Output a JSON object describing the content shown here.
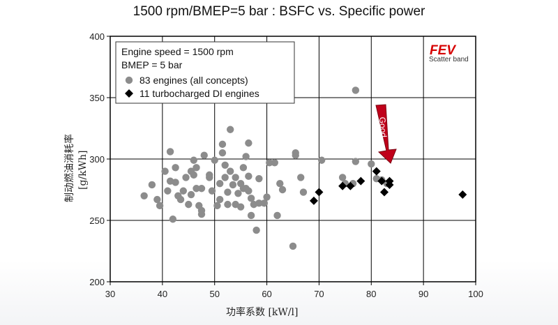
{
  "page_title": "1500 rpm/BMEP=5 bar : BSFC vs. Specific power",
  "chart_data": {
    "type": "scatter",
    "xlabel": "功率系数 [kW/l]",
    "ylabel_cn": "制动燃油消耗率",
    "ylabel_unit": "[g/kWh]",
    "xlim": [
      30,
      100
    ],
    "ylim": [
      200,
      400
    ],
    "xticks": [
      30,
      40,
      50,
      60,
      70,
      80,
      90,
      100
    ],
    "yticks": [
      200,
      250,
      300,
      350,
      400
    ],
    "grid": true,
    "legend": {
      "placement": "top-left",
      "lines": [
        "Engine speed = 1500 rpm",
        "BMEP = 5 bar"
      ],
      "entries": [
        "83 engines (all concepts)",
        "11 turbocharged DI engines"
      ]
    },
    "brand": "FEV",
    "brand_sub": "Scatter band",
    "annotation": "Good",
    "colors": {
      "all_concepts": "#8c8c8c",
      "turbo_di": "#000000",
      "arrow": "#c0001a"
    },
    "series": [
      {
        "name": "83 engines (all concepts)",
        "marker": "circle",
        "points": [
          [
            36.5,
            270
          ],
          [
            38,
            279
          ],
          [
            39,
            267
          ],
          [
            39.5,
            262
          ],
          [
            40.5,
            290
          ],
          [
            41,
            274
          ],
          [
            41.5,
            282
          ],
          [
            41.5,
            306
          ],
          [
            42,
            251
          ],
          [
            42.5,
            293
          ],
          [
            42.5,
            281
          ],
          [
            43,
            270
          ],
          [
            43.5,
            267
          ],
          [
            44,
            274
          ],
          [
            44.5,
            285
          ],
          [
            45,
            263
          ],
          [
            45.5,
            271
          ],
          [
            45.5,
            290
          ],
          [
            46,
            287
          ],
          [
            46,
            299
          ],
          [
            46.5,
            293
          ],
          [
            47,
            262
          ],
          [
            47.5,
            255
          ],
          [
            47.5,
            258
          ],
          [
            47.5,
            276
          ],
          [
            48,
            303
          ],
          [
            49,
            285
          ],
          [
            49.5,
            274
          ],
          [
            50,
            299
          ],
          [
            50.5,
            262
          ],
          [
            51,
            280
          ],
          [
            51,
            267
          ],
          [
            51.5,
            312
          ],
          [
            51.5,
            305
          ],
          [
            52,
            295
          ],
          [
            52,
            285
          ],
          [
            52.5,
            273
          ],
          [
            52.5,
            263
          ],
          [
            53,
            324
          ],
          [
            53,
            290
          ],
          [
            53.5,
            279
          ],
          [
            54,
            285
          ],
          [
            54,
            263
          ],
          [
            54.5,
            272
          ],
          [
            55,
            280
          ],
          [
            55,
            261
          ],
          [
            55.5,
            293
          ],
          [
            55.5,
            276
          ],
          [
            56,
            302
          ],
          [
            56,
            276
          ],
          [
            56.5,
            313
          ],
          [
            56.5,
            286
          ],
          [
            56.5,
            274
          ],
          [
            57,
            268
          ],
          [
            57,
            254
          ],
          [
            57.5,
            263
          ],
          [
            58,
            242
          ],
          [
            58.5,
            264
          ],
          [
            59.5,
            264
          ],
          [
            60,
            269
          ],
          [
            60.5,
            297
          ],
          [
            61.5,
            297
          ],
          [
            62,
            254
          ],
          [
            65,
            229
          ],
          [
            65.5,
            303
          ],
          [
            65.5,
            305
          ],
          [
            66.5,
            285
          ],
          [
            67,
            273
          ],
          [
            70.5,
            299
          ],
          [
            74.5,
            285
          ],
          [
            75,
            280
          ],
          [
            76.5,
            280
          ],
          [
            77,
            298
          ],
          [
            77,
            356
          ],
          [
            80,
            296
          ],
          [
            81,
            284
          ],
          [
            82,
            283
          ],
          [
            83,
            280
          ],
          [
            62.5,
            280
          ],
          [
            63,
            275
          ],
          [
            58.5,
            284
          ],
          [
            49,
            287
          ],
          [
            46.5,
            276
          ]
        ]
      },
      {
        "name": "11 turbocharged DI engines",
        "marker": "diamond",
        "points": [
          [
            69,
            266
          ],
          [
            70,
            273
          ],
          [
            74.5,
            278
          ],
          [
            76,
            278
          ],
          [
            78,
            282
          ],
          [
            81,
            290
          ],
          [
            82,
            282
          ],
          [
            82.5,
            273
          ],
          [
            83.5,
            279
          ],
          [
            83.5,
            282
          ],
          [
            97.5,
            271
          ]
        ]
      }
    ]
  }
}
